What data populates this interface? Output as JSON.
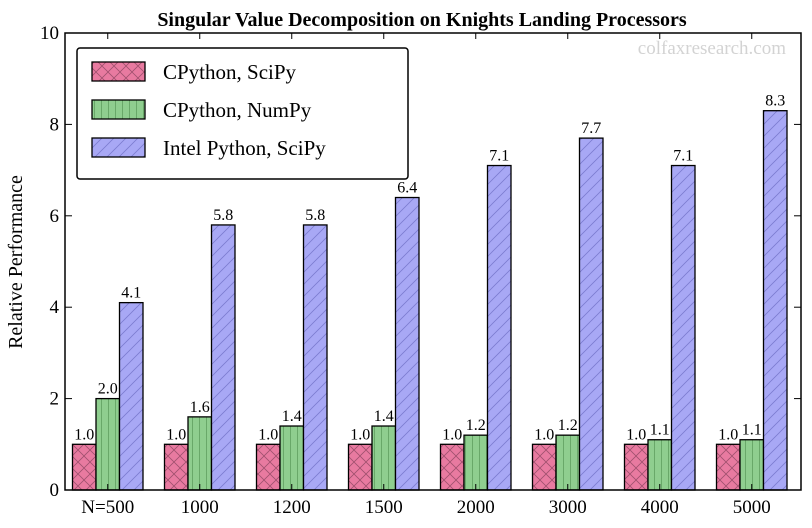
{
  "watermark": "colfaxresearch.com",
  "chart_data": {
    "type": "bar",
    "title": "Singular Value Decomposition on Knights Landing Processors",
    "xlabel": "",
    "ylabel": "Relative Performance",
    "categories": [
      "N=500",
      "1000",
      "1200",
      "1500",
      "2000",
      "3000",
      "4000",
      "5000"
    ],
    "ylim": [
      0,
      10
    ],
    "yticks": [
      "0",
      "2",
      "4",
      "6",
      "8",
      "10"
    ],
    "grid": false,
    "legend_position": "top-left",
    "series": [
      {
        "name": "CPython, SciPy",
        "color": "#e87aa0",
        "hatch": "cross",
        "values": [
          1.0,
          1.0,
          1.0,
          1.0,
          1.0,
          1.0,
          1.0,
          1.0
        ],
        "labels": [
          "1.0",
          "1.0",
          "1.0",
          "1.0",
          "1.0",
          "1.0",
          "1.0",
          "1.0"
        ]
      },
      {
        "name": "CPython, NumPy",
        "color": "#8fce8f",
        "hatch": "vertical",
        "values": [
          2.0,
          1.6,
          1.4,
          1.4,
          1.2,
          1.2,
          1.1,
          1.1
        ],
        "labels": [
          "2.0",
          "1.6",
          "1.4",
          "1.4",
          "1.2",
          "1.2",
          "1.1",
          "1.1"
        ]
      },
      {
        "name": "Intel Python, SciPy",
        "color": "#a8a8f5",
        "hatch": "diagonal",
        "values": [
          4.1,
          5.8,
          5.8,
          6.4,
          7.1,
          7.7,
          7.1,
          8.3
        ],
        "labels": [
          "4.1",
          "5.8",
          "5.8",
          "6.4",
          "7.1",
          "7.7",
          "7.1",
          "8.3"
        ]
      }
    ]
  }
}
